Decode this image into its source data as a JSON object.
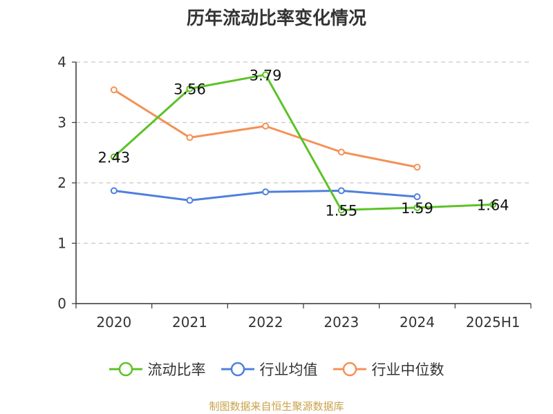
{
  "chart_data": {
    "type": "line",
    "title": "历年流动比率变化情况",
    "categories": [
      "2020",
      "2021",
      "2022",
      "2023",
      "2024",
      "2025H1"
    ],
    "ylim": [
      0,
      4
    ],
    "yticks": [
      "0",
      "1",
      "2",
      "3",
      "4"
    ],
    "grid": true,
    "legend_position": "bottom",
    "series": [
      {
        "name": "流动比率",
        "color": "#5cc226",
        "values": [
          2.43,
          3.56,
          3.79,
          1.55,
          1.59,
          1.64
        ],
        "labels": [
          "2.43",
          "3.56",
          "3.79",
          "1.55",
          "1.59",
          "1.64"
        ]
      },
      {
        "name": "行业均值",
        "color": "#4f7fdc",
        "values": [
          1.87,
          1.71,
          1.85,
          1.87,
          1.77,
          null
        ]
      },
      {
        "name": "行业中位数",
        "color": "#f49155",
        "values": [
          3.54,
          2.75,
          2.94,
          2.51,
          2.26,
          null
        ]
      }
    ]
  },
  "source_note": "制图数据来自恒生聚源数据库"
}
